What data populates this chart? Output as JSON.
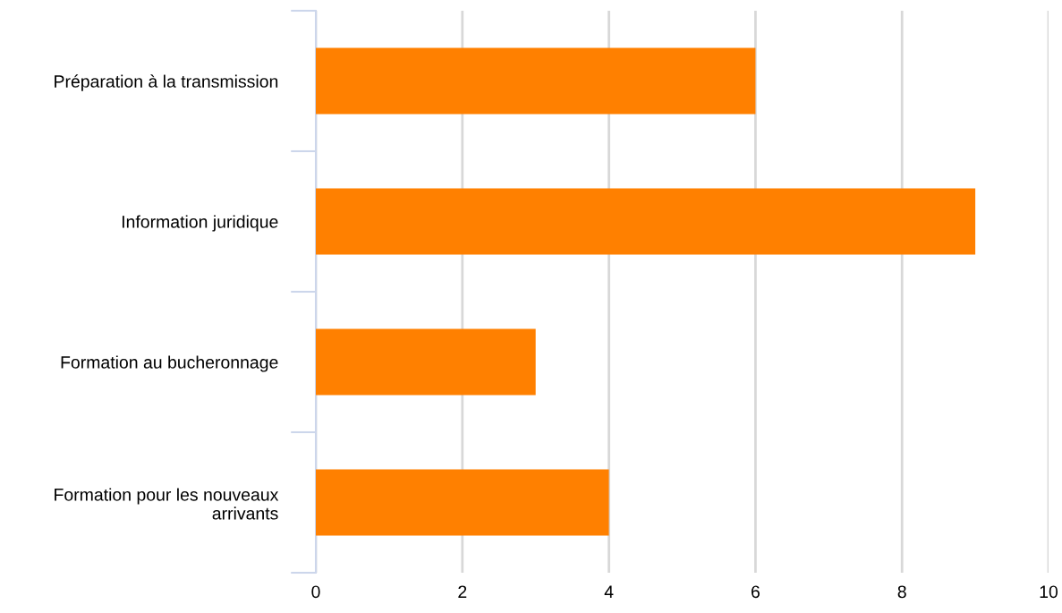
{
  "chart_data": {
    "type": "bar",
    "orientation": "horizontal",
    "categories": [
      "Préparation à la transmission",
      "Information juridique",
      "Formation au bucheronnage",
      "Formation pour les nouveaux\narrivants"
    ],
    "values": [
      6,
      9,
      3,
      4
    ],
    "color": "#ff8000",
    "xlim": [
      0,
      10
    ],
    "xticks": [
      0,
      2,
      4,
      6,
      8,
      10
    ],
    "grid": "x",
    "legend": false
  }
}
